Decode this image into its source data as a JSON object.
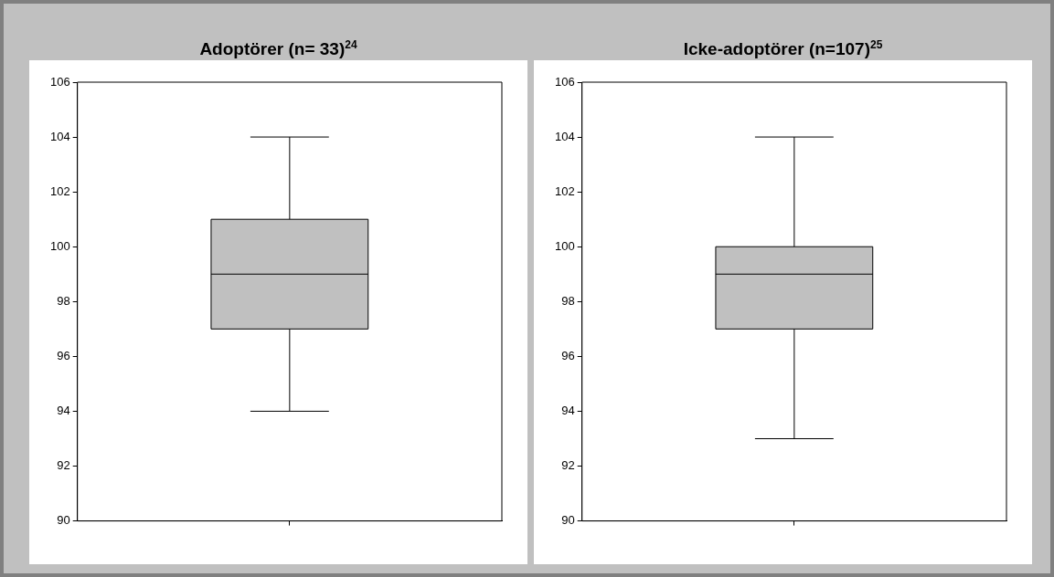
{
  "chart_data": [
    {
      "type": "box",
      "title": "Adoptörer (n= 33)$^{24}$",
      "categories": [
        null
      ],
      "color": "#c0c0c0",
      "boxes": [
        {
          "low": 94,
          "q1": 97,
          "median": 99,
          "q3": 101,
          "high": 104
        }
      ],
      "ylim": [
        90,
        106
      ],
      "yticks": [
        90,
        92,
        94,
        96,
        98,
        100,
        102,
        104,
        106
      ],
      "grid": false,
      "legend": false
    },
    {
      "type": "box",
      "title": "Icke-adoptörer (n=107)$^{25}$",
      "categories": [
        null
      ],
      "color": "#c0c0c0",
      "boxes": [
        {
          "low": 93,
          "q1": 97,
          "median": 99,
          "q3": 100,
          "high": 104
        }
      ],
      "ylim": [
        90,
        106
      ],
      "yticks": [
        90,
        92,
        94,
        96,
        98,
        100,
        102,
        104,
        106
      ],
      "grid": false,
      "legend": false
    }
  ]
}
